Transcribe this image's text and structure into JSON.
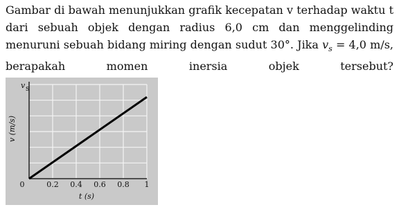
{
  "question": {
    "line1": "Gambar di bawah menunjukkan grafik kecepatan v terhadap waktu t",
    "line2": "dari sebuah objek dengan radius 6,0 cm dan menggelinding",
    "line3": "menuruni sebuah bidang miring dengan sudut 30°. Jika",
    "math_var": "v",
    "math_sub": "s",
    "math_rest": "= 4,0 m/s,",
    "line4": "berapakah momen inersia objek tersebut?"
  },
  "chart_data": {
    "type": "line",
    "x_label": "t (s)",
    "y_label": "v (m/s)",
    "x": [
      0,
      1
    ],
    "series": [
      {
        "name": "v",
        "color": "#000000",
        "values": [
          0,
          5.2
        ]
      }
    ],
    "xlim": [
      0,
      1
    ],
    "xticks": [
      0,
      0.2,
      0.4,
      0.6,
      0.8,
      1
    ],
    "ylim": [
      0,
      6
    ],
    "ygrid": [
      0,
      1,
      2,
      3,
      4,
      5,
      6
    ],
    "yticks": [
      {
        "value": 6,
        "label": "v"
      }
    ],
    "y_top_subscript": "s",
    "grid": true
  }
}
